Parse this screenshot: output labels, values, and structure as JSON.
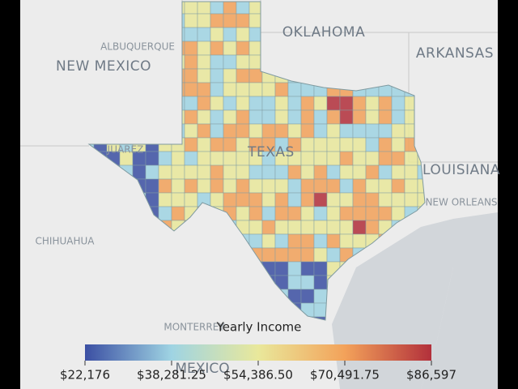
{
  "map": {
    "labels": [
      {
        "text": "OKLAHOMA",
        "kind": "state"
      },
      {
        "text": "NEW MEXICO",
        "kind": "state"
      },
      {
        "text": "ARKANSAS",
        "kind": "state"
      },
      {
        "text": "LOUISIANA",
        "kind": "state"
      },
      {
        "text": "ALBUQUERQUE",
        "kind": "city"
      },
      {
        "text": "CHIHUAHUA",
        "kind": "city"
      },
      {
        "text": "NEW ORLEANS",
        "kind": "city"
      },
      {
        "text": "MONTERREY",
        "kind": "city"
      },
      {
        "text": "MEXICO",
        "kind": "country"
      },
      {
        "text": "JUAREZ",
        "kind": "city"
      },
      {
        "text": "TEXAS",
        "kind": "state"
      }
    ]
  },
  "legend": {
    "title": "Yearly Income",
    "min": 22176,
    "max": 86597,
    "ticks": [
      {
        "value": 22176,
        "label": "$22,176"
      },
      {
        "value": 38281.25,
        "label": "$38,281.25"
      },
      {
        "value": 54386.5,
        "label": "$54,386.50"
      },
      {
        "value": 70491.75,
        "label": "$70,491.75"
      },
      {
        "value": 86597,
        "label": "$86,597"
      }
    ],
    "colors": [
      "#3b4fa3",
      "#9fd4e3",
      "#e9e89b",
      "#f3a25a",
      "#b2303b"
    ]
  }
}
